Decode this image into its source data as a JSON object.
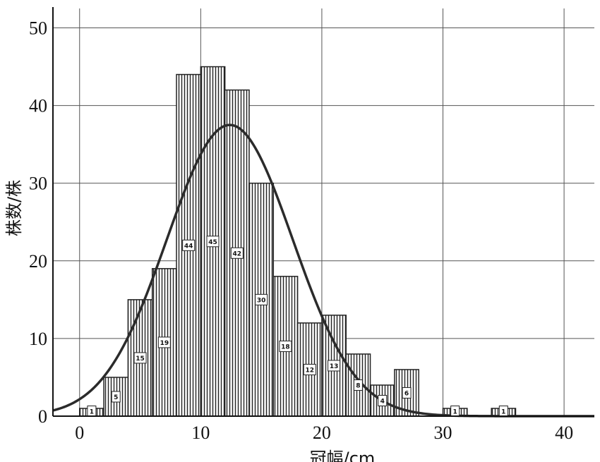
{
  "chart_data": {
    "type": "bar",
    "xlabel": "冠幅/cm",
    "ylabel": "株数/株",
    "xlim": [
      -2.2,
      42.5
    ],
    "ylim": [
      0,
      52.5
    ],
    "x_ticks": [
      0,
      10,
      20,
      30,
      40
    ],
    "y_ticks": [
      0,
      10,
      20,
      30,
      40,
      50
    ],
    "x_tick_labels": [
      "0",
      "10",
      "20",
      "30",
      "40"
    ],
    "y_tick_labels": [
      "0",
      "10",
      "20",
      "30",
      "40",
      "50"
    ],
    "grid": true,
    "bin_width": 2,
    "bins": [
      {
        "start": 0,
        "end": 2,
        "value": 1,
        "label": "1"
      },
      {
        "start": 2,
        "end": 4,
        "value": 5,
        "label": "5"
      },
      {
        "start": 4,
        "end": 6,
        "value": 15,
        "label": "15"
      },
      {
        "start": 6,
        "end": 8,
        "value": 19,
        "label": "19"
      },
      {
        "start": 8,
        "end": 10,
        "value": 44,
        "label": "44"
      },
      {
        "start": 10,
        "end": 12,
        "value": 45,
        "label": "45"
      },
      {
        "start": 12,
        "end": 14,
        "value": 42,
        "label": "42"
      },
      {
        "start": 14,
        "end": 16,
        "value": 30,
        "label": "30"
      },
      {
        "start": 16,
        "end": 18,
        "value": 18,
        "label": "18"
      },
      {
        "start": 18,
        "end": 20,
        "value": 12,
        "label": "12"
      },
      {
        "start": 20,
        "end": 22,
        "value": 13,
        "label": "13"
      },
      {
        "start": 22,
        "end": 24,
        "value": 8,
        "label": "8"
      },
      {
        "start": 24,
        "end": 26,
        "value": 4,
        "label": "4"
      },
      {
        "start": 26,
        "end": 28,
        "value": 6,
        "label": "6"
      },
      {
        "start": 30,
        "end": 32,
        "value": 1,
        "label": "1"
      },
      {
        "start": 34,
        "end": 36,
        "value": 1,
        "label": "1"
      }
    ],
    "fit_curve": {
      "type": "normal",
      "peak": 37.5,
      "mean": 12.4,
      "sd": 5.2
    }
  }
}
